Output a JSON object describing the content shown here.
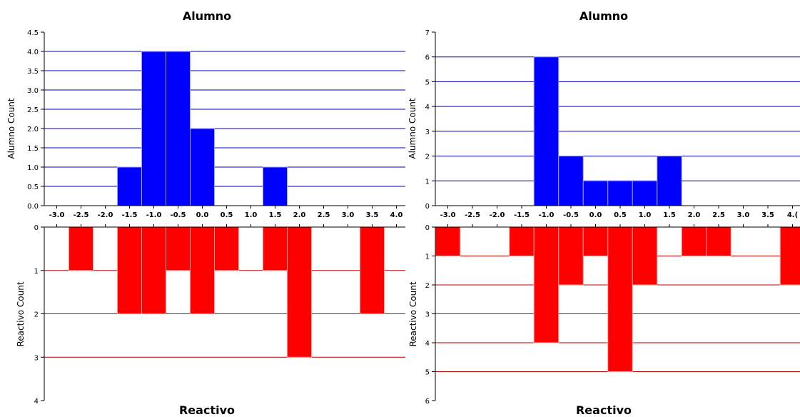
{
  "colors": {
    "top_bar": "#0000ff",
    "top_grid": "#0000c0",
    "bottom_bar": "#ff0000",
    "bottom_grid": "#c00000",
    "axis": "#000000"
  },
  "chart_data": [
    {
      "type": "bar",
      "title": "Alumno",
      "ylabel": "Alumno Count",
      "ylim": [
        0,
        4.5
      ],
      "yticks": [
        "0.0",
        "0.5",
        "1.0",
        "1.5",
        "2.0",
        "2.5",
        "3.0",
        "3.5",
        "4.0",
        "4.5"
      ],
      "grid": true,
      "bin_width": 0.5,
      "values": [
        {
          "x": -1.5,
          "y": 1
        },
        {
          "x": -1.0,
          "y": 4
        },
        {
          "x": -0.5,
          "y": 4
        },
        {
          "x": 0.0,
          "y": 2
        },
        {
          "x": 1.5,
          "y": 1
        }
      ]
    },
    {
      "type": "bar",
      "xlabel": "Reactivo",
      "ylabel": "Reactivo Count",
      "ylim": [
        0,
        4
      ],
      "yticks": [
        "0",
        "1",
        "2",
        "3",
        "4"
      ],
      "inverted": true,
      "grid": true,
      "bin_width": 0.5,
      "values": [
        {
          "x": -2.5,
          "y": 1
        },
        {
          "x": -1.5,
          "y": 2
        },
        {
          "x": -1.0,
          "y": 2
        },
        {
          "x": -0.5,
          "y": 1
        },
        {
          "x": 0.0,
          "y": 2
        },
        {
          "x": 0.5,
          "y": 1
        },
        {
          "x": 1.5,
          "y": 1
        },
        {
          "x": 2.0,
          "y": 3
        },
        {
          "x": 3.5,
          "y": 2
        }
      ]
    },
    {
      "type": "bar",
      "title": "Alumno",
      "ylabel": "Alumno Count",
      "ylim": [
        0,
        7
      ],
      "yticks": [
        "0",
        "1",
        "2",
        "3",
        "4",
        "5",
        "6",
        "7"
      ],
      "grid": true,
      "bin_width": 0.5,
      "values": [
        {
          "x": -1.0,
          "y": 6
        },
        {
          "x": -0.5,
          "y": 2
        },
        {
          "x": 0.0,
          "y": 1
        },
        {
          "x": 0.5,
          "y": 1
        },
        {
          "x": 1.0,
          "y": 1
        },
        {
          "x": 1.5,
          "y": 2
        }
      ]
    },
    {
      "type": "bar",
      "xlabel": "Reactivo",
      "ylabel": "Reactivo Count",
      "ylim": [
        0,
        6
      ],
      "yticks": [
        "0",
        "1",
        "2",
        "3",
        "4",
        "5",
        "6"
      ],
      "inverted": true,
      "grid": true,
      "bin_width": 0.5,
      "values": [
        {
          "x": -3.0,
          "y": 1
        },
        {
          "x": -1.5,
          "y": 1
        },
        {
          "x": -1.0,
          "y": 4
        },
        {
          "x": -0.5,
          "y": 2
        },
        {
          "x": 0.0,
          "y": 1
        },
        {
          "x": 0.5,
          "y": 5
        },
        {
          "x": 1.0,
          "y": 2
        },
        {
          "x": 2.0,
          "y": 1
        },
        {
          "x": 2.5,
          "y": 1
        },
        {
          "x": 4.0,
          "y": 2
        }
      ]
    }
  ],
  "x_axis": {
    "ticks": [
      "-3.0",
      "-2.5",
      "-2.0",
      "-1.5",
      "-1.0",
      "-0.5",
      "0.0",
      "0.5",
      "1.0",
      "1.5",
      "2.0",
      "2.5",
      "3.0",
      "3.5",
      "4.0"
    ],
    "visible_labels_right": [
      "-3.0",
      "-2.5",
      "-2.0",
      "-1.5",
      "-1.0",
      "-0.5",
      "0.0",
      "0.5",
      "1.0",
      "1.5",
      "2.0",
      "2.5",
      "3.0",
      "3.5",
      "4.("
    ]
  }
}
